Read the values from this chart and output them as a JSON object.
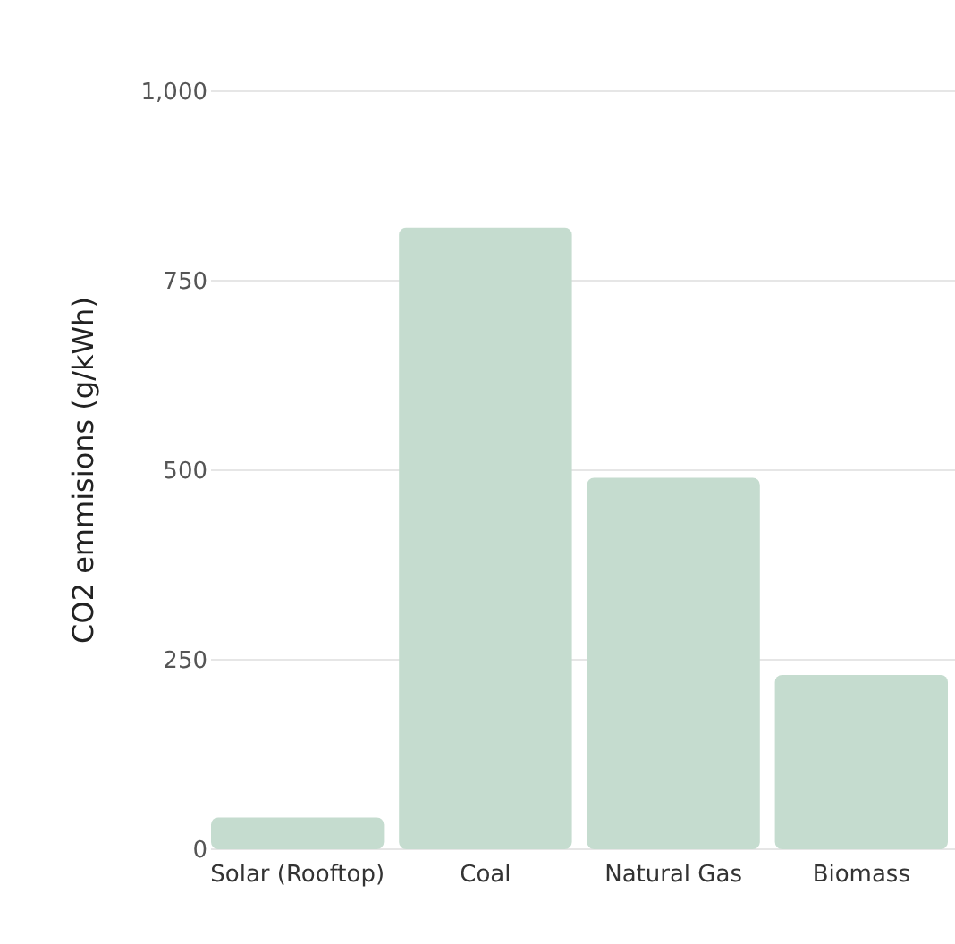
{
  "chart_data": {
    "type": "bar",
    "ylabel": "CO2 emmisions (g/kWh)",
    "categories": [
      "Solar (Rooftop)",
      "Coal",
      "Natural Gas",
      "Biomass"
    ],
    "values": [
      42,
      820,
      490,
      230
    ],
    "color": "#c5dccf",
    "ylim": [
      0,
      1000
    ],
    "yticks": [
      0,
      250,
      500,
      750,
      {
        "value": 1000,
        "label": "1,000"
      }
    ],
    "grid": "y"
  }
}
